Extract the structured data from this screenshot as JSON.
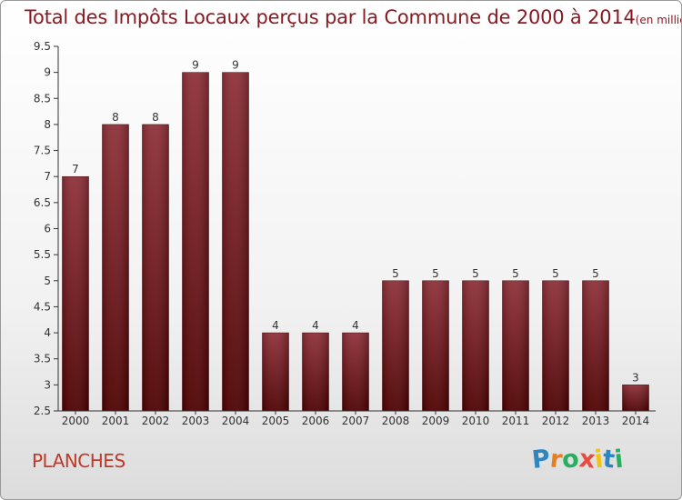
{
  "title": "Total des Impôts Locaux perçus par la Commune de 2000 à 2014",
  "title_unit": "(en milliers d'€)",
  "commune": "PLANCHES",
  "logo": {
    "text": "Proxiti",
    "letters": [
      "P",
      "r",
      "o",
      "x",
      "i",
      "t",
      "i"
    ],
    "colors": [
      "#2e86c1",
      "#e67e22",
      "#27ae60",
      "#e74c3c",
      "#f1c40f",
      "#2e86c1",
      "#27ae60"
    ]
  },
  "colors": {
    "bar_top": "#8e2f38",
    "bar_bottom": "#4d0000",
    "title": "#8a1a22",
    "axis": "#333333"
  },
  "chart_data": {
    "type": "bar",
    "title": "Total des Impôts Locaux perçus par la Commune de 2000 à 2014",
    "xlabel": "",
    "ylabel": "",
    "categories": [
      "2000",
      "2001",
      "2002",
      "2003",
      "2004",
      "2005",
      "2006",
      "2007",
      "2008",
      "2009",
      "2010",
      "2011",
      "2012",
      "2013",
      "2014"
    ],
    "values": [
      7,
      8,
      8,
      9,
      9,
      4,
      4,
      4,
      5,
      5,
      5,
      5,
      5,
      5,
      3
    ],
    "ylim": [
      2.5,
      9.5
    ],
    "yticks": [
      "2.5",
      "3",
      "3.5",
      "4",
      "4.5",
      "5",
      "5.5",
      "6",
      "6.5",
      "7",
      "7.5",
      "8",
      "8.5",
      "9",
      "9.5"
    ],
    "grid": false,
    "data_labels": true
  }
}
